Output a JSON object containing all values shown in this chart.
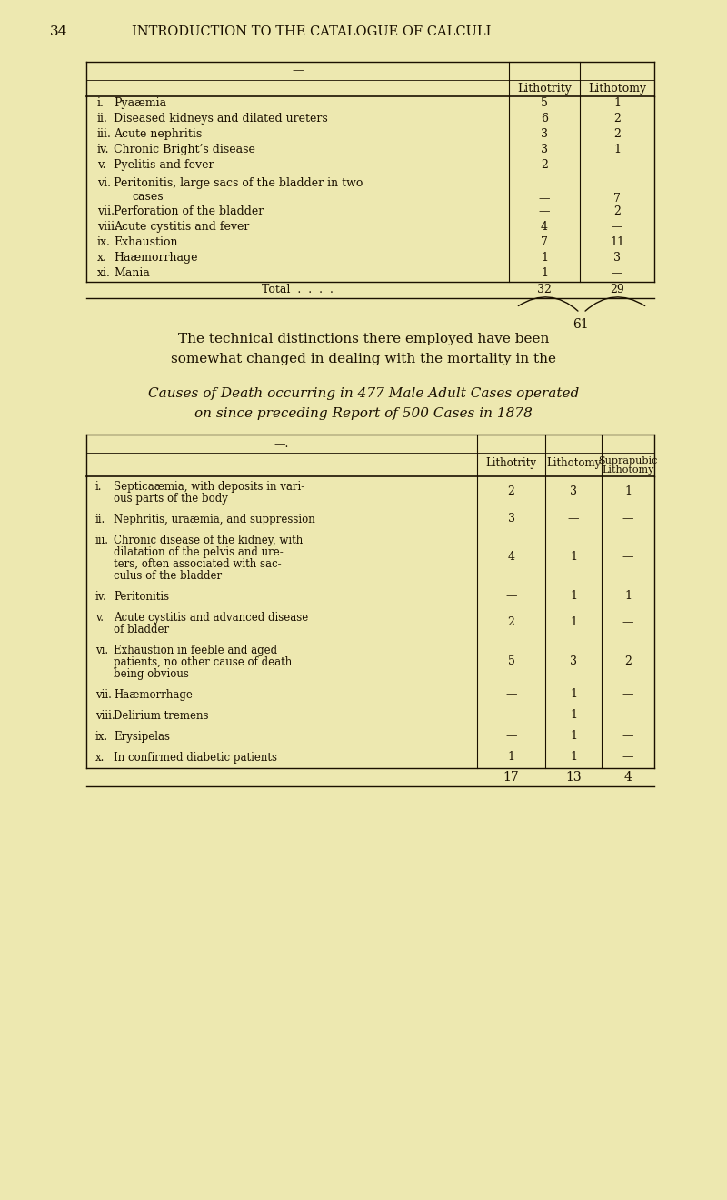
{
  "bg_color": "#ede8b0",
  "text_color": "#1a1000",
  "line_color": "#1a1000",
  "page_num": "34",
  "header": "INTRODUCTION TO THE CATALOGUE OF CALCULI",
  "t1_col_headers": [
    "Lithotrity",
    "Lithotomy"
  ],
  "t1_rows": [
    [
      "i.",
      "Pyaæmia",
      "5",
      "1"
    ],
    [
      "ii.",
      "Diseased kidneys and dilated ureters",
      "6",
      "2"
    ],
    [
      "iii.",
      "Acute nephritis",
      "3",
      "2"
    ],
    [
      "iv.",
      "Chronic Bright’s disease",
      "3",
      "1"
    ],
    [
      "v.",
      "Pyelitis and fever",
      "2",
      "—"
    ],
    [
      "vi.",
      "Peritonitis, large sacs of the bladder in two cases",
      "—",
      "7"
    ],
    [
      "vii.",
      "Perforation of the bladder",
      "—",
      "2"
    ],
    [
      "viii.",
      "Acute cystitis and fever",
      "4",
      "—"
    ],
    [
      "ix.",
      "Exhaustion",
      "7",
      "11"
    ],
    [
      "x.",
      "Haæmorrhage",
      "1",
      "3"
    ],
    [
      "xi.",
      "Mania",
      "1",
      "—"
    ]
  ],
  "t1_total_lith": "32",
  "t1_total_litho": "29",
  "t1_sum": "61",
  "intertext": "The technical distinctions there employed have been\nsomewhat changed in dealing with the mortality in the",
  "t2_caption": [
    "Causes of Death occurring in 477 Male Adult Cases operated",
    "on since preceding Report of 500 Cases in 1878"
  ],
  "t2_col_headers": [
    "Lithotrity",
    "Lithotomy",
    "Suprapubic\nLithotomy"
  ],
  "t2_rows": [
    [
      "i.",
      [
        "Septicaæmia, with deposits in vari-",
        "ous parts of the body"
      ],
      "2",
      "3",
      "1"
    ],
    [
      "ii.",
      [
        "Nephritis, uraæmia, and suppression"
      ],
      "3",
      "—",
      "—"
    ],
    [
      "iii.",
      [
        "Chronic disease of the kidney, with",
        "dilatation of the pelvis and ure-",
        "ters, often associated with sac-",
        "culus of the bladder"
      ],
      "4",
      "1",
      "—"
    ],
    [
      "iv.",
      [
        "Peritonitis"
      ],
      "—",
      "1",
      "1"
    ],
    [
      "v.",
      [
        "Acute cystitis and advanced disease",
        "of bladder"
      ],
      "2",
      "1",
      "—"
    ],
    [
      "vi.",
      [
        "Exhaustion in feeble and aged",
        "patients, no other cause of death",
        "being obvious"
      ],
      "5",
      "3",
      "2"
    ],
    [
      "vii.",
      [
        "Haæmorrhage"
      ],
      "—",
      "1",
      "—"
    ],
    [
      "viii.",
      [
        "Delirium tremens"
      ],
      "—",
      "1",
      "—"
    ],
    [
      "ix.",
      [
        "Erysipelas"
      ],
      "—",
      "1",
      "—"
    ],
    [
      "x.",
      [
        "In confirmed diabetic patients"
      ],
      "1",
      "1",
      "—"
    ]
  ],
  "t2_total": [
    "17",
    "13",
    "4"
  ]
}
